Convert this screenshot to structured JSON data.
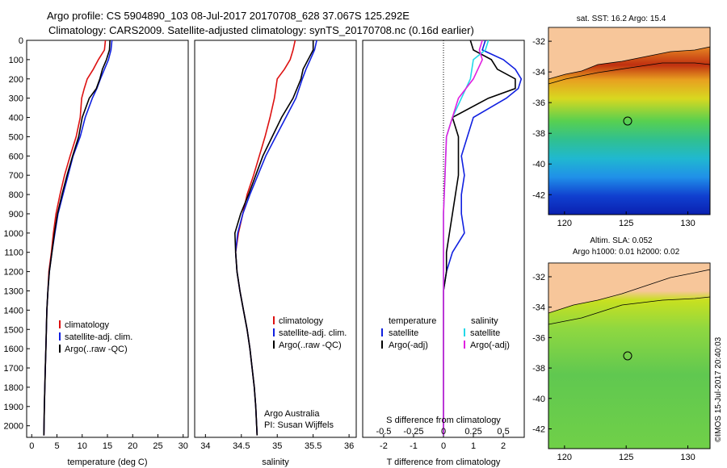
{
  "header": {
    "title_line1": "Argo profile: CS 5904890_103 08-Jul-2017 20170708_628 37.067S 125.292E",
    "title_line2": "Climatology: CARS2009. Satellite-adjusted climatology: synTS_20170708.nc (0.16d earlier)"
  },
  "colors": {
    "climatology": "#dd1111",
    "satellite": "#1020e0",
    "argo": "#000000",
    "satellite_s": "#22d8e8",
    "argo_s": "#e020e0",
    "land": "#f7c69a"
  },
  "depth_axis": {
    "ylim": [
      0,
      2060
    ],
    "ticks": [
      0,
      100,
      200,
      300,
      400,
      500,
      600,
      700,
      800,
      900,
      1000,
      1100,
      1200,
      1300,
      1400,
      1500,
      1600,
      1700,
      1800,
      1900,
      2000
    ]
  },
  "panels": {
    "temperature": {
      "xlabel": "temperature (deg C)",
      "xlim": [
        -1,
        31
      ],
      "xticks": [
        "0",
        "5",
        "10",
        "15",
        "20",
        "25",
        "30"
      ],
      "legend": [
        "climatology",
        "satellite-adj. clim.",
        "Argo(..raw -QC)"
      ]
    },
    "salinity": {
      "xlabel": "salinity",
      "xlim": [
        33.85,
        36.1
      ],
      "xticks": [
        "34",
        "34.5",
        "35",
        "35.5",
        "36"
      ],
      "legend": [
        "climatology",
        "satellite-adj. clim.",
        "Argo(..raw -QC)"
      ],
      "credit1": "Argo Australia",
      "credit2": "PI: Susan Wijffels"
    },
    "difference": {
      "xlabel": "T difference from climatology",
      "xlabel_top": "S difference from climatology",
      "xlim": [
        -2.7,
        2.7
      ],
      "xticks": [
        "-2",
        "-1",
        "0",
        "1",
        "2"
      ],
      "sticks": [
        "-0.5",
        "-0.25",
        "0",
        "0.25",
        "0.5"
      ],
      "legend_t_head": "temperature",
      "legend_s_head": "salinity",
      "legend_t": [
        "satellite",
        "Argo(-adj)"
      ],
      "legend_s": [
        "satellite",
        "Argo(-adj)"
      ]
    }
  },
  "maps": {
    "sst": {
      "title": "sat. SST: 16.2 Argo: 15.4",
      "xticks": [
        "120",
        "125",
        "130"
      ],
      "yticks": [
        "-32",
        "-34",
        "-36",
        "-38",
        "-40",
        "-42"
      ]
    },
    "sla": {
      "title1": "Altim. SLA: 0.052",
      "title2": "Argo h1000: 0.01 h2000: 0.02",
      "xticks": [
        "120",
        "125",
        "130"
      ],
      "yticks": [
        "-32",
        "-34",
        "-36",
        "-38",
        "-40",
        "-42"
      ]
    },
    "float_position": {
      "lon": 125.292,
      "lat": -37.067
    }
  },
  "side_label": "©IMOS 15-Jul-2017 20:40:03",
  "chart_data": [
    {
      "type": "line",
      "name": "temperature profile",
      "xlabel": "temperature (deg C)",
      "ylabel": "depth",
      "xlim": [
        -1,
        31
      ],
      "ylim": [
        0,
        2060
      ],
      "series": [
        {
          "name": "climatology",
          "points": [
            [
              14.6,
              0
            ],
            [
              14.4,
              50
            ],
            [
              13.2,
              100
            ],
            [
              12.2,
              150
            ],
            [
              11.0,
              200
            ],
            [
              10.4,
              250
            ],
            [
              9.9,
              300
            ],
            [
              9.6,
              400
            ],
            [
              8.8,
              500
            ],
            [
              7.6,
              600
            ],
            [
              6.5,
              700
            ],
            [
              5.6,
              800
            ],
            [
              4.8,
              900
            ],
            [
              4.3,
              1000
            ],
            [
              3.9,
              1100
            ],
            [
              3.4,
              1200
            ],
            [
              3.2,
              1300
            ],
            [
              3.0,
              1400
            ],
            [
              2.9,
              1500
            ],
            [
              2.8,
              1600
            ],
            [
              2.7,
              1700
            ],
            [
              2.6,
              1800
            ],
            [
              2.5,
              1900
            ],
            [
              2.4,
              2050
            ]
          ]
        },
        {
          "name": "satellite-adj. clim.",
          "points": [
            [
              15.9,
              0
            ],
            [
              15.7,
              50
            ],
            [
              15.2,
              100
            ],
            [
              14.4,
              150
            ],
            [
              13.6,
              200
            ],
            [
              12.9,
              250
            ],
            [
              12.0,
              300
            ],
            [
              10.6,
              400
            ],
            [
              9.6,
              500
            ],
            [
              8.2,
              600
            ],
            [
              7.2,
              700
            ],
            [
              6.2,
              800
            ],
            [
              5.2,
              900
            ],
            [
              4.6,
              1000
            ],
            [
              4.0,
              1100
            ],
            [
              3.5,
              1200
            ],
            [
              3.2,
              1300
            ],
            [
              3.0,
              1400
            ],
            [
              2.9,
              1500
            ],
            [
              2.8,
              1600
            ],
            [
              2.7,
              1700
            ],
            [
              2.6,
              1800
            ],
            [
              2.5,
              1900
            ],
            [
              2.4,
              2050
            ]
          ]
        },
        {
          "name": "Argo(..raw -QC)",
          "points": [
            [
              15.5,
              0
            ],
            [
              15.4,
              50
            ],
            [
              14.8,
              100
            ],
            [
              14.0,
              150
            ],
            [
              13.5,
              200
            ],
            [
              12.8,
              250
            ],
            [
              11.4,
              300
            ],
            [
              10.0,
              400
            ],
            [
              9.3,
              500
            ],
            [
              8.1,
              600
            ],
            [
              7.0,
              700
            ],
            [
              6.0,
              800
            ],
            [
              5.1,
              900
            ],
            [
              4.5,
              1000
            ],
            [
              4.0,
              1100
            ],
            [
              3.5,
              1200
            ],
            [
              3.2,
              1300
            ],
            [
              3.0,
              1400
            ],
            [
              2.9,
              1500
            ],
            [
              2.8,
              1600
            ],
            [
              2.7,
              1700
            ],
            [
              2.6,
              1800
            ],
            [
              2.5,
              1900
            ],
            [
              2.4,
              2050
            ]
          ]
        }
      ]
    },
    {
      "type": "line",
      "name": "salinity profile",
      "xlabel": "salinity",
      "ylabel": "depth",
      "xlim": [
        33.85,
        36.1
      ],
      "ylim": [
        0,
        2060
      ],
      "series": [
        {
          "name": "climatology",
          "points": [
            [
              35.25,
              0
            ],
            [
              35.22,
              50
            ],
            [
              35.18,
              100
            ],
            [
              35.1,
              150
            ],
            [
              35.0,
              200
            ],
            [
              34.96,
              300
            ],
            [
              34.9,
              400
            ],
            [
              34.83,
              500
            ],
            [
              34.75,
              600
            ],
            [
              34.67,
              700
            ],
            [
              34.58,
              800
            ],
            [
              34.52,
              900
            ],
            [
              34.46,
              1000
            ],
            [
              34.42,
              1100
            ],
            [
              34.44,
              1200
            ],
            [
              34.48,
              1300
            ],
            [
              34.53,
              1400
            ],
            [
              34.58,
              1500
            ],
            [
              34.62,
              1600
            ],
            [
              34.65,
              1700
            ],
            [
              34.68,
              1800
            ],
            [
              34.7,
              1900
            ],
            [
              34.72,
              2050
            ]
          ]
        },
        {
          "name": "satellite-adj. clim.",
          "points": [
            [
              35.55,
              0
            ],
            [
              35.52,
              50
            ],
            [
              35.46,
              100
            ],
            [
              35.4,
              150
            ],
            [
              35.35,
              200
            ],
            [
              35.26,
              300
            ],
            [
              35.12,
              400
            ],
            [
              34.98,
              500
            ],
            [
              34.84,
              600
            ],
            [
              34.73,
              700
            ],
            [
              34.62,
              800
            ],
            [
              34.52,
              900
            ],
            [
              34.45,
              1000
            ],
            [
              34.42,
              1100
            ],
            [
              34.44,
              1200
            ],
            [
              34.48,
              1300
            ],
            [
              34.53,
              1400
            ],
            [
              34.58,
              1500
            ],
            [
              34.62,
              1600
            ],
            [
              34.65,
              1700
            ],
            [
              34.68,
              1800
            ],
            [
              34.7,
              1900
            ],
            [
              34.72,
              2050
            ]
          ]
        },
        {
          "name": "Argo(..raw -QC)",
          "points": [
            [
              35.5,
              0
            ],
            [
              35.5,
              50
            ],
            [
              35.43,
              100
            ],
            [
              35.36,
              150
            ],
            [
              35.33,
              200
            ],
            [
              35.22,
              300
            ],
            [
              35.06,
              400
            ],
            [
              34.93,
              500
            ],
            [
              34.8,
              600
            ],
            [
              34.7,
              700
            ],
            [
              34.6,
              800
            ],
            [
              34.49,
              900
            ],
            [
              34.41,
              1000
            ],
            [
              34.42,
              1100
            ],
            [
              34.44,
              1200
            ],
            [
              34.48,
              1300
            ],
            [
              34.53,
              1400
            ],
            [
              34.58,
              1500
            ],
            [
              34.62,
              1600
            ],
            [
              34.65,
              1700
            ],
            [
              34.68,
              1800
            ],
            [
              34.7,
              1900
            ],
            [
              34.72,
              2050
            ]
          ]
        }
      ]
    },
    {
      "type": "line",
      "name": "difference from climatology",
      "xlabel": "T difference from climatology",
      "ylabel": "depth",
      "xlim": [
        -2.7,
        2.7
      ],
      "ylim": [
        0,
        2060
      ],
      "series": [
        {
          "name": "temperature satellite",
          "points": [
            [
              1.4,
              0
            ],
            [
              1.3,
              50
            ],
            [
              2.0,
              100
            ],
            [
              2.4,
              150
            ],
            [
              2.6,
              200
            ],
            [
              2.5,
              250
            ],
            [
              2.1,
              300
            ],
            [
              1.0,
              400
            ],
            [
              0.8,
              500
            ],
            [
              0.6,
              600
            ],
            [
              0.7,
              700
            ],
            [
              0.6,
              800
            ],
            [
              0.6,
              900
            ],
            [
              0.7,
              1000
            ],
            [
              0.3,
              1100
            ],
            [
              0.1,
              1200
            ],
            [
              0,
              1300
            ],
            [
              0,
              1500
            ],
            [
              0,
              2050
            ]
          ]
        },
        {
          "name": "temperature Argo(-adj)",
          "points": [
            [
              0.9,
              0
            ],
            [
              1.0,
              50
            ],
            [
              1.6,
              100
            ],
            [
              1.8,
              150
            ],
            [
              2.4,
              200
            ],
            [
              2.4,
              250
            ],
            [
              1.5,
              300
            ],
            [
              0.3,
              400
            ],
            [
              0.5,
              500
            ],
            [
              0.5,
              600
            ],
            [
              0.5,
              700
            ],
            [
              0.4,
              800
            ],
            [
              0.3,
              900
            ],
            [
              0.2,
              1000
            ],
            [
              0.1,
              1100
            ],
            [
              0.1,
              1200
            ],
            [
              0,
              1300
            ],
            [
              0,
              1500
            ],
            [
              0,
              2050
            ]
          ]
        },
        {
          "name": "salinity satellite",
          "points": [
            [
              1.5,
              0
            ],
            [
              1.4,
              50
            ],
            [
              1.0,
              100
            ],
            [
              0.9,
              200
            ],
            [
              0.6,
              300
            ],
            [
              0.3,
              400
            ],
            [
              0.1,
              500
            ],
            [
              0.05,
              700
            ],
            [
              0,
              900
            ],
            [
              0,
              1100
            ],
            [
              0,
              1500
            ],
            [
              0,
              2050
            ]
          ]
        },
        {
          "name": "salinity Argo(-adj)",
          "points": [
            [
              1.3,
              0
            ],
            [
              1.2,
              50
            ],
            [
              1.3,
              100
            ],
            [
              1.0,
              200
            ],
            [
              0.5,
              300
            ],
            [
              0.3,
              400
            ],
            [
              0.1,
              500
            ],
            [
              0.05,
              700
            ],
            [
              0,
              900
            ],
            [
              0,
              1100
            ],
            [
              0,
              1500
            ],
            [
              0,
              2050
            ]
          ]
        }
      ]
    }
  ]
}
